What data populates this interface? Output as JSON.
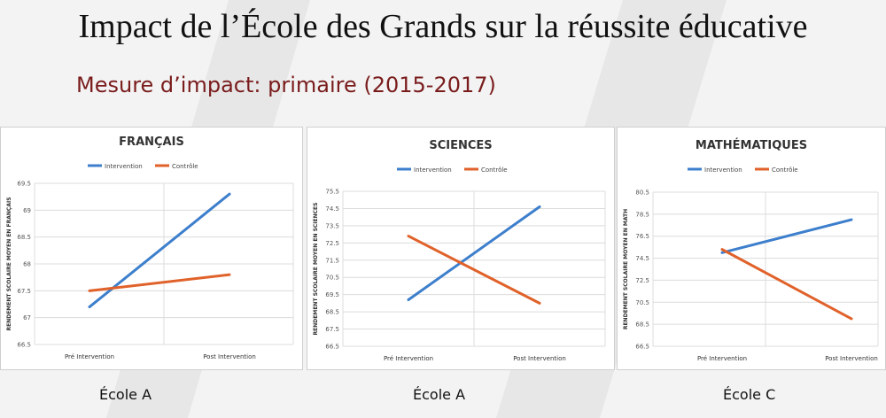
{
  "slide": {
    "title": "Impact de l’École des Grands sur la réussite éducative",
    "subtitle": "Mesure d’impact: primaire (2015-2017)"
  },
  "colors": {
    "intervention": "#3d7fcc",
    "controle": "#e0622a"
  },
  "chart_data": [
    {
      "type": "line",
      "title": "FRANÇAIS",
      "ylabel": "RENDEMENT SCOLAIRE MOYEN EN FRANÇAIS",
      "categories": [
        "Pré Intervention",
        "Post Intervention"
      ],
      "ylim": [
        66.5,
        69.5
      ],
      "yticks": [
        "66.5",
        "67",
        "67.5",
        "68",
        "68.5",
        "69",
        "69.5"
      ],
      "legend": "top",
      "series": [
        {
          "name": "Intervention",
          "values": [
            67.2,
            69.3
          ]
        },
        {
          "name": "Contrôle",
          "values": [
            67.5,
            67.8
          ]
        }
      ],
      "footer": "École A"
    },
    {
      "type": "line",
      "title": "SCIENCES",
      "ylabel": "RENDEMENT SCOLAIRE MOYEN EN SCIENCES",
      "categories": [
        "Pré Intervention",
        "Post Intervention"
      ],
      "ylim": [
        66.5,
        75.5
      ],
      "yticks": [
        "66.5",
        "67.5",
        "68.5",
        "69.5",
        "70.5",
        "71.5",
        "72.5",
        "73.5",
        "74.5",
        "75.5"
      ],
      "legend": "top",
      "series": [
        {
          "name": "Intervention",
          "values": [
            69.2,
            74.6
          ]
        },
        {
          "name": "Contrôle",
          "values": [
            72.9,
            69.0
          ]
        }
      ],
      "footer": "École A"
    },
    {
      "type": "line",
      "title": "MATHÉMATIQUES",
      "ylabel": "RENDEMENT SCOLAIRE MOYEN EN MATH",
      "categories": [
        "Pré Intervention",
        "Post Intervention"
      ],
      "ylim": [
        66.5,
        80.5
      ],
      "yticks": [
        "66.5",
        "68.5",
        "70.5",
        "72.5",
        "74.5",
        "76.5",
        "78.5",
        "80.5"
      ],
      "legend": "top",
      "series": [
        {
          "name": "Intervention",
          "values": [
            75.0,
            78.0
          ]
        },
        {
          "name": "Contrôle",
          "values": [
            75.3,
            69.0
          ]
        }
      ],
      "footer": "École C"
    }
  ]
}
